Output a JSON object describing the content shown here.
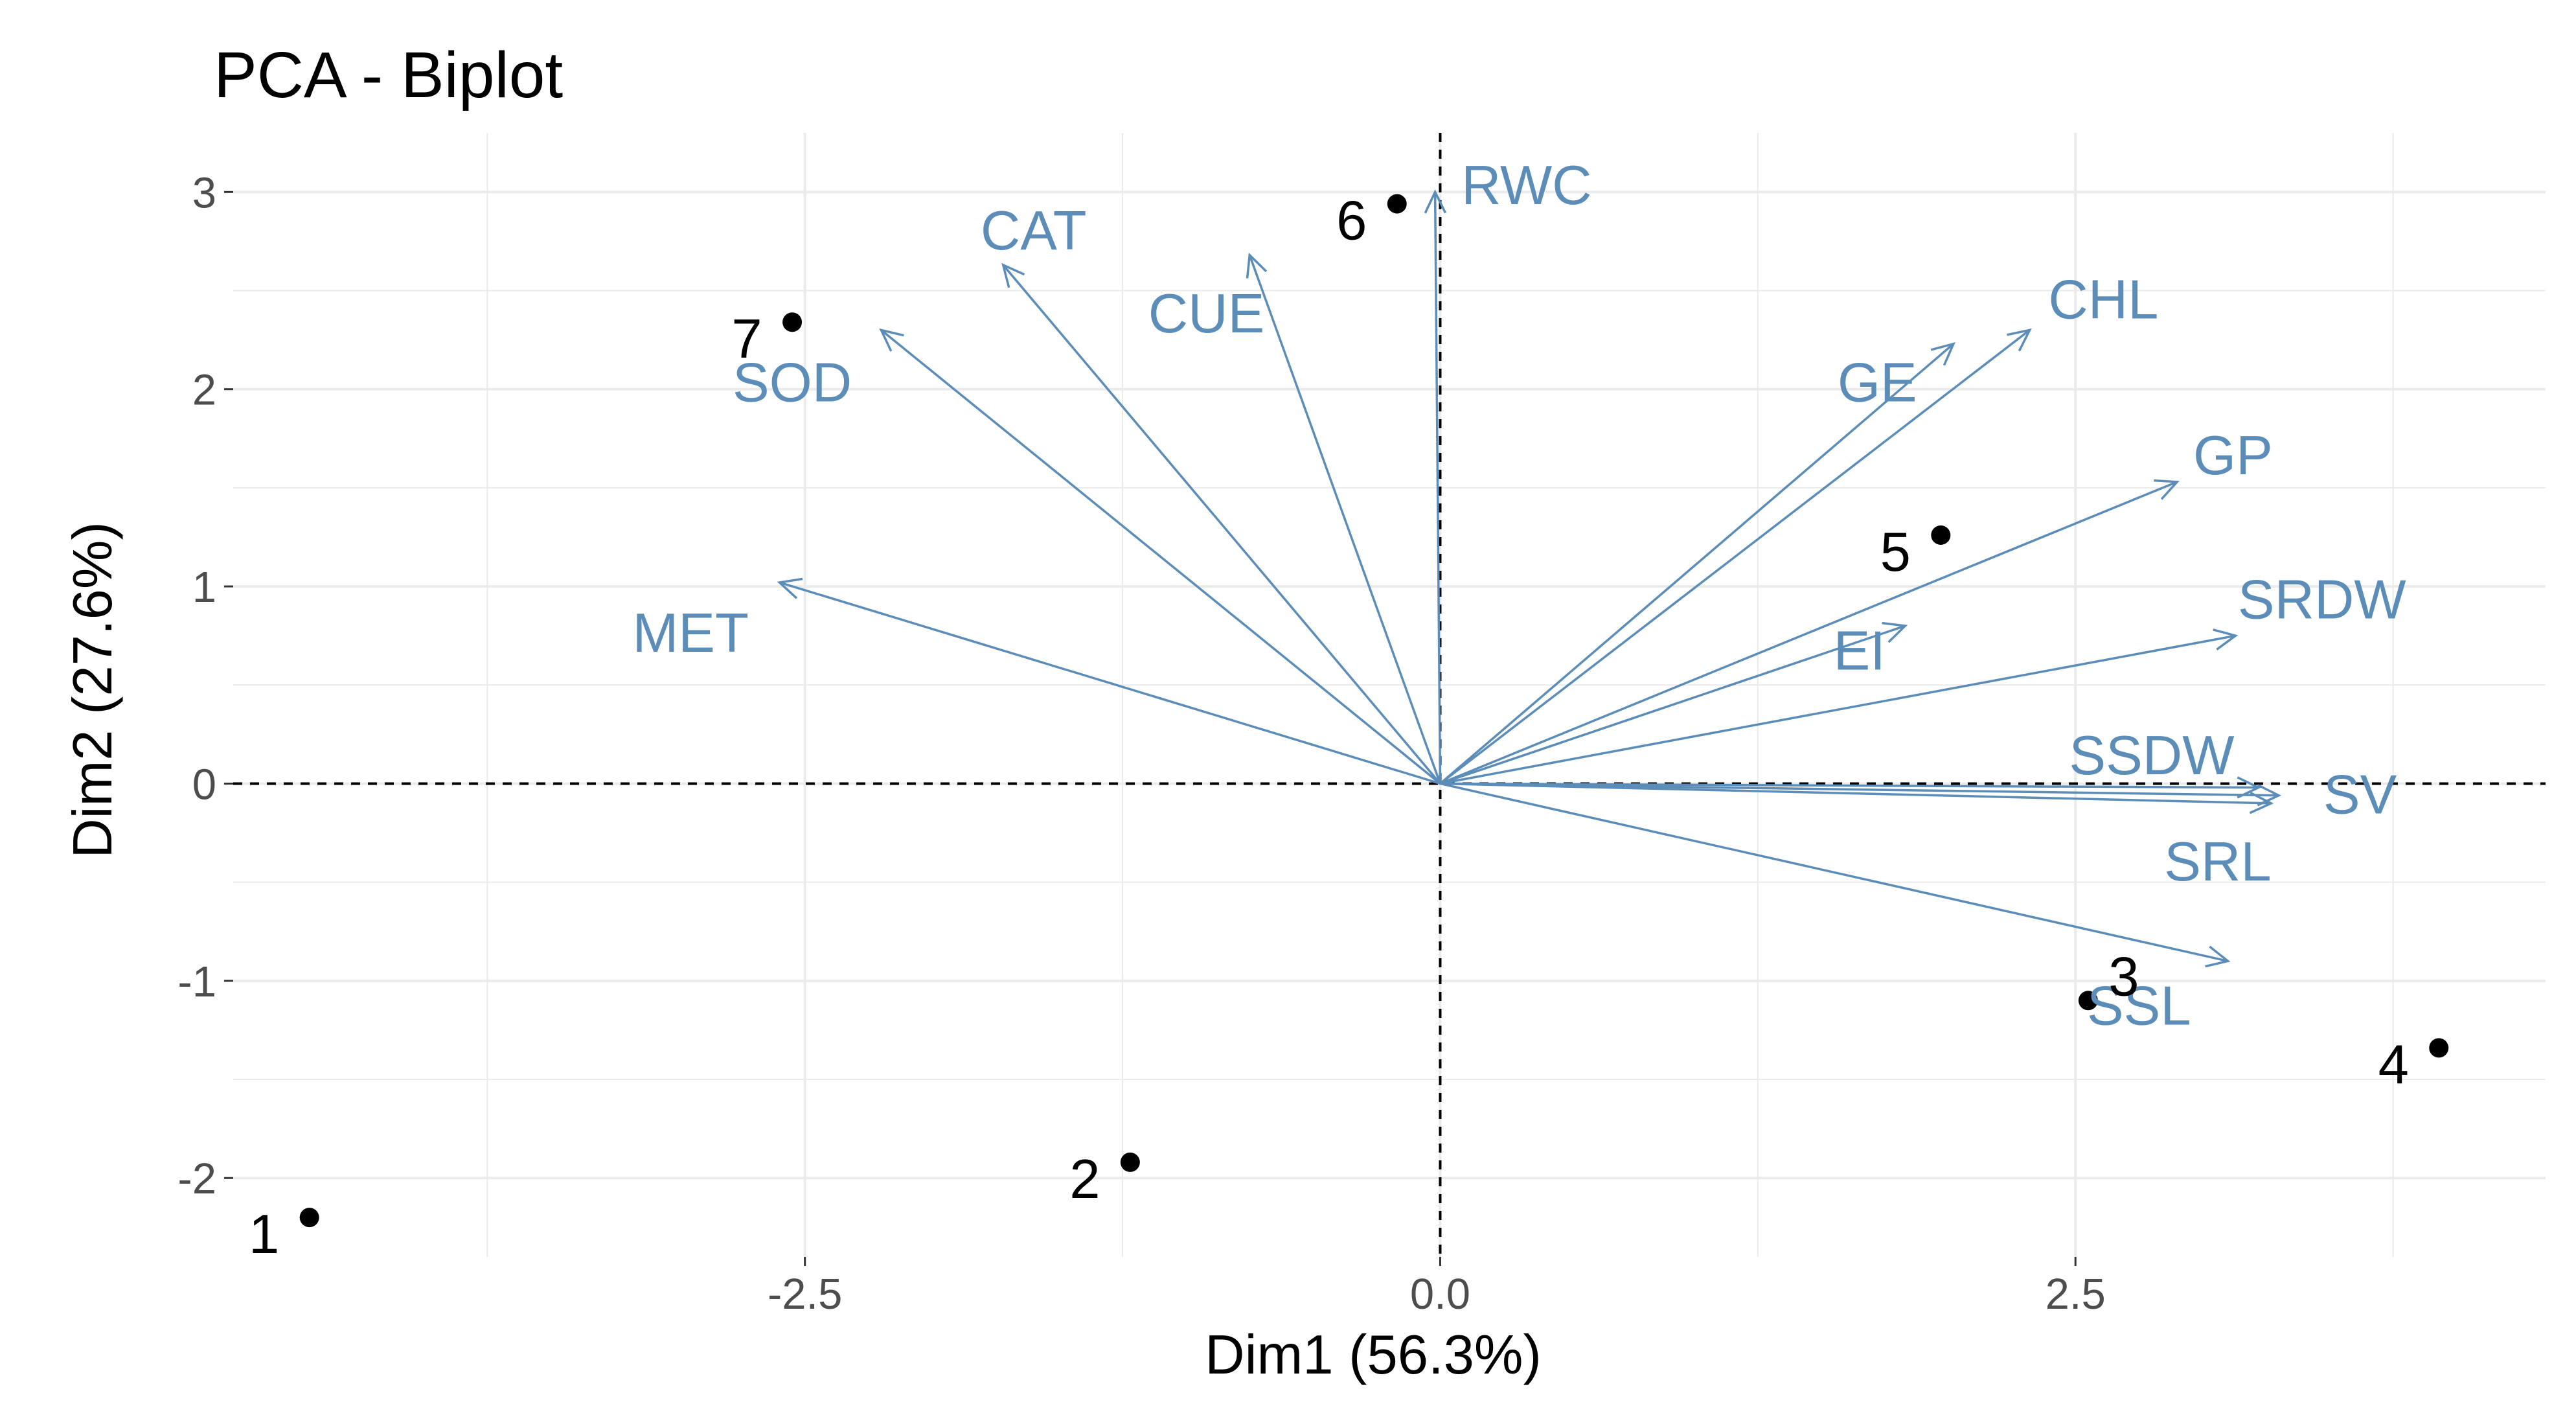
{
  "colors": {
    "variable": "#5b8db8",
    "observation": "#000000",
    "grid": "#ebebeb",
    "tick_text": "#4d4d4d",
    "background": "#ffffff"
  },
  "chart_data": {
    "type": "scatter",
    "subtype": "pca-biplot",
    "title": "PCA - Biplot",
    "xlabel": "Dim1 (56.3%)",
    "ylabel": "Dim2 (27.6%)",
    "xlim": [
      -4.75,
      4.35
    ],
    "ylim": [
      -2.4,
      3.3
    ],
    "grid": true,
    "legend": "none",
    "x_ticks": [
      {
        "value": -2.5,
        "label": "-2.5"
      },
      {
        "value": 0,
        "label": "0.0"
      },
      {
        "value": 2.5,
        "label": "2.5"
      }
    ],
    "y_ticks": [
      {
        "value": -2,
        "label": "-2"
      },
      {
        "value": -1,
        "label": "-1"
      },
      {
        "value": 0,
        "label": "0"
      },
      {
        "value": 1,
        "label": "1"
      },
      {
        "value": 2,
        "label": "2"
      },
      {
        "value": 3,
        "label": "3"
      }
    ],
    "minor_x": [
      -3.75,
      -1.25,
      1.25,
      3.75
    ],
    "minor_y": [
      -1.5,
      -0.5,
      0.5,
      1.5,
      2.5
    ],
    "reference_lines": {
      "x": 0,
      "y": 0
    },
    "observations": [
      {
        "label": "1",
        "x": -4.45,
        "y": -2.2,
        "label_pos": "bottom-left"
      },
      {
        "label": "2",
        "x": -1.22,
        "y": -1.92,
        "label_pos": "bottom-left"
      },
      {
        "label": "3",
        "x": 2.55,
        "y": -1.1,
        "label_pos": "top-right"
      },
      {
        "label": "4",
        "x": 3.93,
        "y": -1.34,
        "label_pos": "bottom-left"
      },
      {
        "label": "5",
        "x": 1.97,
        "y": 1.26,
        "label_pos": "bottom-left"
      },
      {
        "label": "6",
        "x": -0.17,
        "y": 2.94,
        "label_pos": "bottom-left"
      },
      {
        "label": "7",
        "x": -2.55,
        "y": 2.34,
        "label_pos": "bottom-left"
      }
    ],
    "variables": [
      {
        "label": "RWC",
        "x": -0.02,
        "y": 3.0,
        "label_x": 0.34,
        "label_y": 3.03
      },
      {
        "label": "CAT",
        "x": -1.72,
        "y": 2.63,
        "label_x": -1.6,
        "label_y": 2.8
      },
      {
        "label": "CUE",
        "x": -0.75,
        "y": 2.68,
        "label_x": -0.92,
        "label_y": 2.38
      },
      {
        "label": "SOD",
        "x": -2.2,
        "y": 2.3,
        "label_x": -2.55,
        "label_y": 2.03
      },
      {
        "label": "MET",
        "x": -2.6,
        "y": 1.02,
        "label_x": -2.95,
        "label_y": 0.76
      },
      {
        "label": "CHL",
        "x": 2.32,
        "y": 2.3,
        "label_x": 2.61,
        "label_y": 2.45
      },
      {
        "label": "GE",
        "x": 2.02,
        "y": 2.23,
        "label_x": 1.72,
        "label_y": 2.03
      },
      {
        "label": "GP",
        "x": 2.9,
        "y": 1.53,
        "label_x": 3.12,
        "label_y": 1.66
      },
      {
        "label": "SRDW",
        "x": 3.13,
        "y": 0.75,
        "label_x": 3.47,
        "label_y": 0.93
      },
      {
        "label": "EI",
        "x": 1.83,
        "y": 0.8,
        "label_x": 1.65,
        "label_y": 0.67
      },
      {
        "label": "SSDW",
        "x": 3.22,
        "y": -0.02,
        "label_x": 2.8,
        "label_y": 0.14
      },
      {
        "label": "SV",
        "x": 3.3,
        "y": -0.06,
        "label_x": 3.62,
        "label_y": -0.06
      },
      {
        "label": "SRL",
        "x": 3.27,
        "y": -0.1,
        "label_x": 3.06,
        "label_y": -0.4
      },
      {
        "label": "SSL",
        "x": 3.1,
        "y": -0.9,
        "label_x": 2.75,
        "label_y": -1.13
      }
    ]
  }
}
